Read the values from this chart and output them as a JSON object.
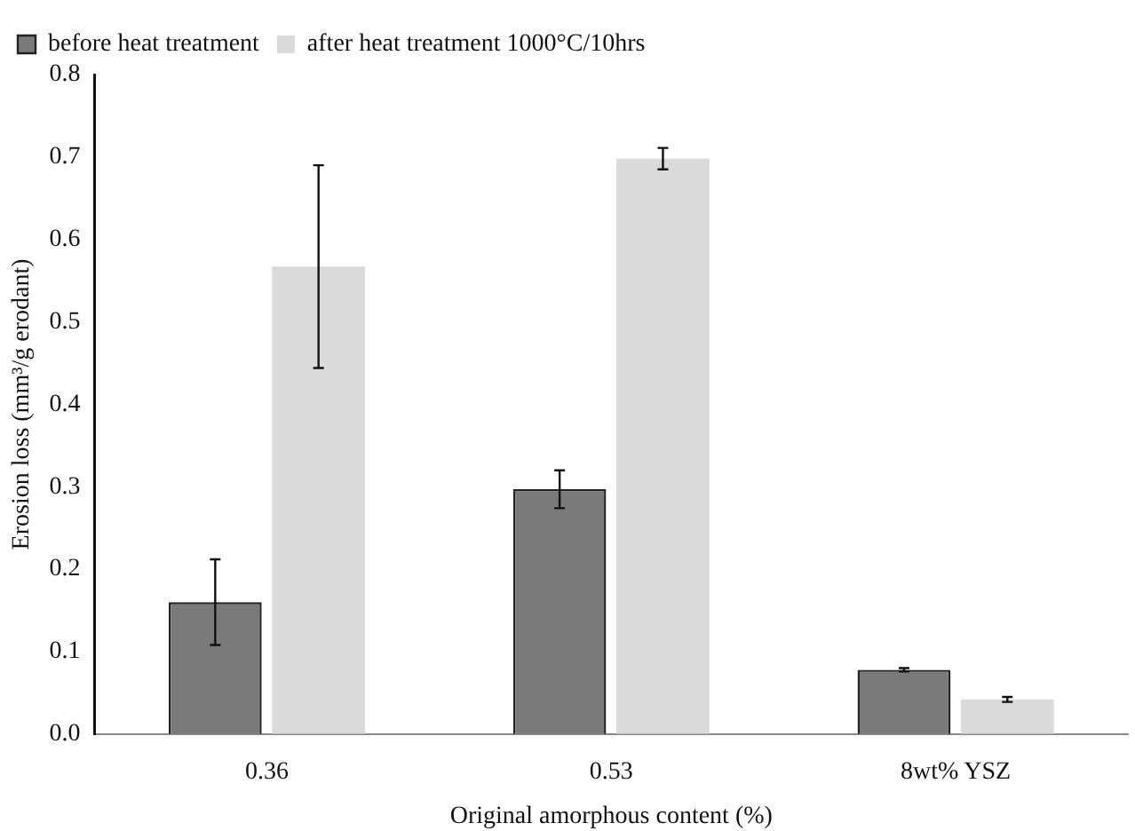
{
  "chart_data": {
    "type": "bar",
    "xlabel": "Original amorphous content (%)",
    "ylabel": "Erosion loss (mm³/g erodant)",
    "categories": [
      "0.36",
      "0.53",
      "8wt% YSZ"
    ],
    "series": [
      {
        "name": "before heat treatment",
        "color": "#7a7a7a",
        "values": [
          0.16,
          0.297,
          0.078
        ],
        "errors": [
          0.052,
          0.023,
          0.002
        ]
      },
      {
        "name": "after heat treatment 1000°C/10hrs",
        "color": "#dadada",
        "values": [
          0.567,
          0.698,
          0.042
        ],
        "errors": [
          0.123,
          0.013,
          0.003
        ]
      }
    ],
    "ylim": [
      0,
      0.8
    ],
    "yticks": [
      {
        "value": 0,
        "label": "0.0"
      },
      0.1,
      0.2,
      0.3,
      0.4,
      0.5,
      0.6,
      0.7,
      0.8
    ],
    "grid": false,
    "legend": "top left"
  }
}
